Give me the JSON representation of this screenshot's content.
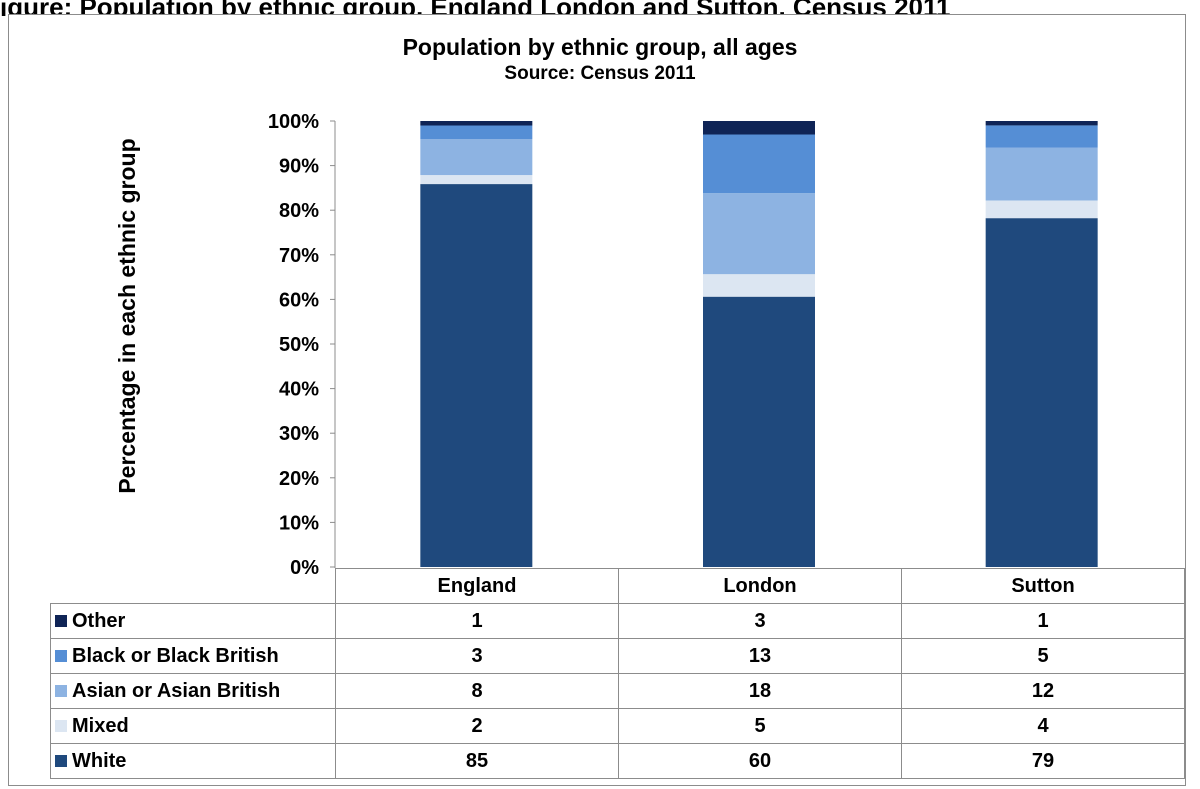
{
  "page_heading": "igure: Population by ethnic group, England London and Sutton, Census 2011",
  "chart_data": {
    "type": "bar",
    "stacked": true,
    "title": "Population by ethnic group, all ages",
    "subtitle": "Source: Census 2011",
    "ylabel": "Percentage in each ethnic group",
    "xlabel": "",
    "ylim": [
      0,
      100
    ],
    "y_ticks": [
      "0%",
      "10%",
      "20%",
      "30%",
      "40%",
      "50%",
      "60%",
      "70%",
      "80%",
      "90%",
      "100%"
    ],
    "categories": [
      "England",
      "London",
      "Sutton"
    ],
    "series": [
      {
        "name": "White",
        "color": "#1f497d",
        "values": [
          85,
          60,
          79
        ]
      },
      {
        "name": "Mixed",
        "color": "#dce6f2",
        "values": [
          2,
          5,
          4
        ]
      },
      {
        "name": "Asian or Asian British",
        "color": "#8db3e2",
        "values": [
          8,
          18,
          12
        ]
      },
      {
        "name": "Black or Black British",
        "color": "#558ed5",
        "values": [
          3,
          13,
          5
        ]
      },
      {
        "name": "Other",
        "color": "#0f2456",
        "values": [
          1,
          3,
          1
        ]
      }
    ],
    "table_rows": [
      "Other",
      "Black or Black British",
      "Asian or Asian British",
      "Mixed",
      "White"
    ],
    "grid": false,
    "legend": "data-table"
  }
}
